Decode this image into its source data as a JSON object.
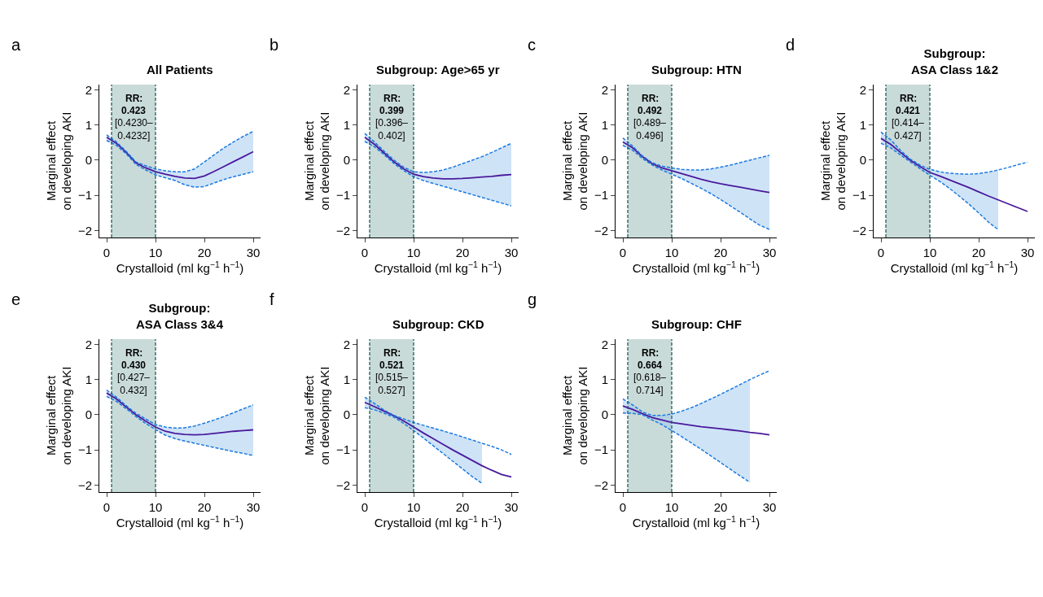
{
  "chart_data": [
    {
      "type": "line",
      "title": "All Patients",
      "xlabel": "Crystalloid (ml kg$^{−1}$ h$^{−1}$)",
      "ylabel": "Marginal effect\non developing AKI",
      "annotations": [
        "a",
        "RR:",
        "0.423",
        "[0.4230–\n0.4232]"
      ],
      "xlim": [
        -1.5,
        31.5
      ],
      "ylim": [
        -2.2,
        2.15
      ],
      "xticks": [
        0,
        10,
        20,
        30
      ],
      "yticks": [
        -2,
        -1,
        0,
        1,
        2
      ],
      "grid": false,
      "marker": "none",
      "line_style": "solid",
      "x": [
        0,
        2,
        4,
        6,
        8,
        10,
        12,
        14,
        16,
        18,
        20,
        22,
        24,
        26,
        28,
        30
      ],
      "series": [
        {
          "color": "#4a1a9c",
          "values": [
            0.65,
            0.48,
            0.22,
            -0.08,
            -0.22,
            -0.33,
            -0.4,
            -0.46,
            -0.51,
            -0.52,
            -0.45,
            -0.32,
            -0.18,
            -0.04,
            0.1,
            0.24
          ],
          "upper": [
            0.72,
            0.52,
            0.25,
            -0.05,
            -0.16,
            -0.25,
            -0.3,
            -0.33,
            -0.33,
            -0.25,
            -0.05,
            0.15,
            0.35,
            0.52,
            0.68,
            0.82
          ],
          "lower": [
            0.56,
            0.42,
            0.18,
            -0.12,
            -0.28,
            -0.42,
            -0.5,
            -0.58,
            -0.7,
            -0.77,
            -0.75,
            -0.65,
            -0.55,
            -0.47,
            -0.4,
            -0.33
          ]
        },
        {
          "color": "#1a7ae0",
          "line_style": "dashed",
          "values": [
            0.72,
            0.52,
            0.25,
            -0.05,
            -0.16,
            -0.25,
            -0.3,
            -0.33,
            -0.33,
            -0.25,
            -0.05,
            0.15,
            0.35,
            0.52,
            0.68,
            0.82
          ]
        },
        {
          "color": "#1a7ae0",
          "line_style": "dashed",
          "values": [
            0.56,
            0.42,
            0.18,
            -0.12,
            -0.28,
            -0.42,
            -0.5,
            -0.58,
            -0.7,
            -0.77,
            -0.75,
            -0.65,
            -0.55,
            -0.47,
            -0.4,
            -0.33
          ]
        }
      ],
      "bands": [
        {
          "axis": "x",
          "from": 1,
          "to": 10,
          "color": "#c9dbd9"
        }
      ],
      "ref_lines": [
        {
          "axis": "x",
          "value": 1,
          "color": "#1e5f5a",
          "line_style": "dashed"
        },
        {
          "axis": "x",
          "value": 10,
          "color": "#1e5f5a",
          "line_style": "dashed"
        }
      ]
    },
    {
      "type": "line",
      "title": "Subgroup: Age>65 yr",
      "xlabel": "Crystalloid (ml kg$^{−1}$ h$^{−1}$)",
      "ylabel": "Marginal effect\non developing AKI",
      "annotations": [
        "b",
        "RR:",
        "0.399",
        "[0.396–\n0.402]"
      ],
      "xlim": [
        -1.5,
        31.5
      ],
      "ylim": [
        -2.2,
        2.15
      ],
      "xticks": [
        0,
        10,
        20,
        30
      ],
      "yticks": [
        -2,
        -1,
        0,
        1,
        2
      ],
      "grid": false,
      "marker": "none",
      "line_style": "solid",
      "x": [
        0,
        2,
        4,
        6,
        8,
        10,
        12,
        14,
        16,
        18,
        20,
        22,
        24,
        26,
        28,
        30
      ],
      "series": [
        {
          "color": "#4a1a9c",
          "values": [
            0.65,
            0.45,
            0.2,
            -0.05,
            -0.25,
            -0.4,
            -0.47,
            -0.51,
            -0.53,
            -0.53,
            -0.52,
            -0.5,
            -0.48,
            -0.46,
            -0.43,
            -0.41
          ],
          "upper": [
            0.76,
            0.52,
            0.25,
            0,
            -0.2,
            -0.33,
            -0.35,
            -0.33,
            -0.28,
            -0.2,
            -0.1,
            0,
            0.1,
            0.22,
            0.35,
            0.48
          ],
          "lower": [
            0.53,
            0.38,
            0.15,
            -0.1,
            -0.3,
            -0.47,
            -0.58,
            -0.66,
            -0.74,
            -0.82,
            -0.9,
            -0.98,
            -1.06,
            -1.14,
            -1.22,
            -1.3
          ]
        },
        {
          "color": "#1a7ae0",
          "line_style": "dashed",
          "values": [
            0.76,
            0.52,
            0.25,
            0,
            -0.2,
            -0.33,
            -0.35,
            -0.33,
            -0.28,
            -0.2,
            -0.1,
            0,
            0.1,
            0.22,
            0.35,
            0.48
          ]
        },
        {
          "color": "#1a7ae0",
          "line_style": "dashed",
          "values": [
            0.53,
            0.38,
            0.15,
            -0.1,
            -0.3,
            -0.47,
            -0.58,
            -0.66,
            -0.74,
            -0.82,
            -0.9,
            -0.98,
            -1.06,
            -1.14,
            -1.22,
            -1.3
          ]
        }
      ],
      "bands": [
        {
          "axis": "x",
          "from": 1,
          "to": 10,
          "color": "#c9dbd9"
        }
      ],
      "ref_lines": [
        {
          "axis": "x",
          "value": 1,
          "color": "#1e5f5a",
          "line_style": "dashed"
        },
        {
          "axis": "x",
          "value": 10,
          "color": "#1e5f5a",
          "line_style": "dashed"
        }
      ]
    },
    {
      "type": "line",
      "title": "Subgroup: HTN",
      "xlabel": "Crystalloid (ml kg$^{−1}$ h$^{−1}$)",
      "ylabel": "Marginal effect\non developing AKI",
      "annotations": [
        "c",
        "RR:",
        "0.492",
        "[0.489–\n0.496]"
      ],
      "xlim": [
        -1.5,
        31.5
      ],
      "ylim": [
        -2.2,
        2.15
      ],
      "xticks": [
        0,
        10,
        20,
        30
      ],
      "yticks": [
        -2,
        -1,
        0,
        1,
        2
      ],
      "grid": false,
      "marker": "none",
      "line_style": "solid",
      "x": [
        0,
        2,
        4,
        6,
        8,
        10,
        12,
        14,
        16,
        18,
        20,
        22,
        24,
        26,
        28,
        30
      ],
      "series": [
        {
          "color": "#4a1a9c",
          "values": [
            0.52,
            0.35,
            0.1,
            -0.1,
            -0.22,
            -0.3,
            -0.38,
            -0.46,
            -0.54,
            -0.61,
            -0.67,
            -0.72,
            -0.77,
            -0.82,
            -0.87,
            -0.92
          ],
          "upper": [
            0.63,
            0.4,
            0.12,
            -0.07,
            -0.17,
            -0.22,
            -0.26,
            -0.28,
            -0.28,
            -0.25,
            -0.2,
            -0.14,
            -0.07,
            0,
            0.07,
            0.14
          ],
          "lower": [
            0.42,
            0.28,
            0.05,
            -0.14,
            -0.28,
            -0.4,
            -0.52,
            -0.66,
            -0.8,
            -0.95,
            -1.12,
            -1.3,
            -1.48,
            -1.67,
            -1.85,
            -1.97
          ]
        },
        {
          "color": "#1a7ae0",
          "line_style": "dashed",
          "values": [
            0.63,
            0.4,
            0.12,
            -0.07,
            -0.17,
            -0.22,
            -0.26,
            -0.28,
            -0.28,
            -0.25,
            -0.2,
            -0.14,
            -0.07,
            0,
            0.07,
            0.14
          ]
        },
        {
          "color": "#1a7ae0",
          "line_style": "dashed",
          "values": [
            0.42,
            0.28,
            0.05,
            -0.14,
            -0.28,
            -0.4,
            -0.52,
            -0.66,
            -0.8,
            -0.95,
            -1.12,
            -1.3,
            -1.48,
            -1.67,
            -1.85,
            -1.97
          ]
        }
      ],
      "bands": [
        {
          "axis": "x",
          "from": 1,
          "to": 10,
          "color": "#c9dbd9"
        }
      ],
      "ref_lines": [
        {
          "axis": "x",
          "value": 1,
          "color": "#1e5f5a",
          "line_style": "dashed"
        },
        {
          "axis": "x",
          "value": 10,
          "color": "#1e5f5a",
          "line_style": "dashed"
        }
      ]
    },
    {
      "type": "line",
      "title": "Subgroup:\nASA Class 1&2",
      "xlabel": "Crystalloid (ml kg$^{−1}$ h$^{−1}$)",
      "ylabel": "Marginal effect\non developing AKI",
      "annotations": [
        "d",
        "RR:",
        "0.421",
        "[0.414–\n0.427]"
      ],
      "xlim": [
        -1.5,
        31.5
      ],
      "ylim": [
        -2.2,
        2.15
      ],
      "xticks": [
        0,
        10,
        20,
        30
      ],
      "yticks": [
        -2,
        -1,
        0,
        1,
        2
      ],
      "grid": false,
      "marker": "none",
      "line_style": "solid",
      "x": [
        0,
        2,
        4,
        6,
        8,
        10,
        12,
        14,
        16,
        18,
        20,
        22,
        24,
        26,
        28,
        30
      ],
      "series": [
        {
          "color": "#4a1a9c",
          "values": [
            0.62,
            0.45,
            0.22,
            0,
            -0.18,
            -0.35,
            -0.45,
            -0.56,
            -0.67,
            -0.78,
            -0.9,
            -1.02,
            -1.13,
            -1.24,
            -1.35,
            -1.46
          ],
          "upper": [
            0.8,
            0.58,
            0.28,
            0.03,
            -0.14,
            -0.26,
            -0.33,
            -0.37,
            -0.39,
            -0.4,
            -0.38,
            -0.34,
            -0.28,
            null,
            null,
            null
          ],
          "lower": [
            0.48,
            0.35,
            0.15,
            -0.05,
            -0.24,
            -0.43,
            -0.6,
            -0.8,
            -1.02,
            -1.25,
            -1.5,
            -1.76,
            -1.98,
            null,
            null,
            null
          ]
        },
        {
          "color": "#1a7ae0",
          "line_style": "dashed",
          "values": [
            0.8,
            0.58,
            0.28,
            0.03,
            -0.14,
            -0.26,
            -0.33,
            -0.37,
            -0.39,
            -0.4,
            -0.38,
            -0.34,
            -0.28,
            -0.21,
            -0.13,
            -0.06
          ]
        },
        {
          "color": "#1a7ae0",
          "line_style": "dashed",
          "values": [
            0.48,
            0.35,
            0.15,
            -0.05,
            -0.24,
            -0.43,
            -0.6,
            -0.8,
            -1.02,
            -1.25,
            -1.5,
            -1.76,
            -1.98,
            null,
            null,
            null
          ]
        }
      ],
      "bands": [
        {
          "axis": "x",
          "from": 1,
          "to": 10,
          "color": "#c9dbd9"
        }
      ],
      "ref_lines": [
        {
          "axis": "x",
          "value": 1,
          "color": "#1e5f5a",
          "line_style": "dashed"
        },
        {
          "axis": "x",
          "value": 10,
          "color": "#1e5f5a",
          "line_style": "dashed"
        }
      ]
    },
    {
      "type": "line",
      "title": "Subgroup:\nASA Class 3&4",
      "xlabel": "Crystalloid (ml kg$^{−1}$ h$^{−1}$)",
      "ylabel": "Marginal effect\non developing AKI",
      "annotations": [
        "e",
        "RR:",
        "0.430",
        "[0.427–\n0.432]"
      ],
      "xlim": [
        -1.5,
        31.5
      ],
      "ylim": [
        -2.2,
        2.15
      ],
      "xticks": [
        0,
        10,
        20,
        30
      ],
      "yticks": [
        -2,
        -1,
        0,
        1,
        2
      ],
      "grid": false,
      "marker": "none",
      "line_style": "solid",
      "x": [
        0,
        2,
        4,
        6,
        8,
        10,
        12,
        14,
        16,
        18,
        20,
        22,
        24,
        26,
        28,
        30
      ],
      "series": [
        {
          "color": "#4a1a9c",
          "values": [
            0.62,
            0.45,
            0.22,
            0,
            -0.18,
            -0.35,
            -0.47,
            -0.53,
            -0.56,
            -0.57,
            -0.56,
            -0.53,
            -0.5,
            -0.47,
            -0.45,
            -0.43
          ],
          "upper": [
            0.7,
            0.5,
            0.26,
            0.04,
            -0.12,
            -0.28,
            -0.35,
            -0.38,
            -0.37,
            -0.32,
            -0.24,
            -0.15,
            -0.05,
            0.06,
            0.17,
            0.28
          ],
          "lower": [
            0.52,
            0.38,
            0.17,
            -0.05,
            -0.25,
            -0.42,
            -0.58,
            -0.68,
            -0.75,
            -0.81,
            -0.87,
            -0.93,
            -0.99,
            -1.05,
            -1.1,
            -1.16
          ]
        },
        {
          "color": "#1a7ae0",
          "line_style": "dashed",
          "values": [
            0.7,
            0.5,
            0.26,
            0.04,
            -0.12,
            -0.28,
            -0.35,
            -0.38,
            -0.37,
            -0.32,
            -0.24,
            -0.15,
            -0.05,
            0.06,
            0.17,
            0.28
          ]
        },
        {
          "color": "#1a7ae0",
          "line_style": "dashed",
          "values": [
            0.52,
            0.38,
            0.17,
            -0.05,
            -0.25,
            -0.42,
            -0.58,
            -0.68,
            -0.75,
            -0.81,
            -0.87,
            -0.93,
            -0.99,
            -1.05,
            -1.1,
            -1.16
          ]
        }
      ],
      "bands": [
        {
          "axis": "x",
          "from": 1,
          "to": 10,
          "color": "#c9dbd9"
        }
      ],
      "ref_lines": [
        {
          "axis": "x",
          "value": 1,
          "color": "#1e5f5a",
          "line_style": "dashed"
        },
        {
          "axis": "x",
          "value": 10,
          "color": "#1e5f5a",
          "line_style": "dashed"
        }
      ]
    },
    {
      "type": "line",
      "title": "Subgroup: CKD",
      "xlabel": "Crystalloid (ml kg$^{−1}$ h$^{−1}$)",
      "ylabel": "Marginal effect\non developing AKI",
      "annotations": [
        "f",
        "RR:",
        "0.521",
        "[0.515–\n0.527]"
      ],
      "xlim": [
        -1.5,
        31.5
      ],
      "ylim": [
        -2.2,
        2.15
      ],
      "xticks": [
        0,
        10,
        20,
        30
      ],
      "yticks": [
        -2,
        -1,
        0,
        1,
        2
      ],
      "grid": false,
      "marker": "none",
      "line_style": "solid",
      "x": [
        0,
        2,
        4,
        6,
        8,
        10,
        12,
        14,
        16,
        18,
        20,
        22,
        24,
        26,
        28,
        30
      ],
      "series": [
        {
          "color": "#4a1a9c",
          "values": [
            0.35,
            0.23,
            0.1,
            -0.03,
            -0.18,
            -0.35,
            -0.52,
            -0.68,
            -0.84,
            -1.0,
            -1.15,
            -1.3,
            -1.45,
            -1.58,
            -1.7,
            -1.77
          ],
          "upper": [
            0.5,
            0.32,
            0.13,
            -0.02,
            -0.12,
            -0.22,
            -0.3,
            -0.38,
            -0.46,
            -0.54,
            -0.63,
            -0.72,
            -0.81,
            null,
            null,
            null
          ],
          "lower": [
            0.2,
            0.14,
            0.04,
            -0.07,
            -0.25,
            -0.45,
            -0.66,
            -0.88,
            -1.1,
            -1.32,
            -1.54,
            -1.76,
            -1.95,
            null,
            null,
            null
          ]
        },
        {
          "color": "#1a7ae0",
          "line_style": "dashed",
          "values": [
            0.5,
            0.32,
            0.13,
            -0.02,
            -0.12,
            -0.22,
            -0.3,
            -0.38,
            -0.46,
            -0.54,
            -0.63,
            -0.72,
            -0.81,
            -0.9,
            -1.0,
            -1.13
          ]
        },
        {
          "color": "#1a7ae0",
          "line_style": "dashed",
          "values": [
            0.2,
            0.14,
            0.04,
            -0.07,
            -0.25,
            -0.45,
            -0.66,
            -0.88,
            -1.1,
            -1.32,
            -1.54,
            -1.76,
            -1.95,
            null,
            null,
            null
          ]
        }
      ],
      "bands": [
        {
          "axis": "x",
          "from": 1,
          "to": 10,
          "color": "#c9dbd9"
        }
      ],
      "ref_lines": [
        {
          "axis": "x",
          "value": 1,
          "color": "#1e5f5a",
          "line_style": "dashed"
        },
        {
          "axis": "x",
          "value": 10,
          "color": "#1e5f5a",
          "line_style": "dashed"
        }
      ]
    },
    {
      "type": "line",
      "title": "Subgroup: CHF",
      "xlabel": "Crystalloid (ml kg$^{−1}$ h$^{−1}$)",
      "ylabel": "Marginal effect\non developing AKI",
      "annotations": [
        "g",
        "RR:",
        "0.664",
        "[0.618–\n0.714]"
      ],
      "xlim": [
        -1.5,
        31.5
      ],
      "ylim": [
        -2.2,
        2.15
      ],
      "xticks": [
        0,
        10,
        20,
        30
      ],
      "yticks": [
        -2,
        -1,
        0,
        1,
        2
      ],
      "grid": false,
      "marker": "none",
      "line_style": "solid",
      "x": [
        0,
        2,
        4,
        6,
        8,
        10,
        12,
        14,
        16,
        18,
        20,
        22,
        24,
        26,
        28,
        30
      ],
      "series": [
        {
          "color": "#4a1a9c",
          "values": [
            0.25,
            0.15,
            0.03,
            -0.08,
            -0.15,
            -0.22,
            -0.26,
            -0.3,
            -0.34,
            -0.37,
            -0.4,
            -0.43,
            -0.46,
            -0.5,
            -0.53,
            -0.57
          ],
          "upper": [
            0.45,
            0.28,
            0.08,
            -0.02,
            -0.02,
            0.02,
            0.1,
            0.2,
            0.32,
            0.45,
            0.58,
            0.72,
            0.86,
            1.0,
            null,
            null
          ],
          "lower": [
            0.05,
            0.04,
            0.0,
            -0.15,
            -0.28,
            -0.45,
            -0.62,
            -0.8,
            -0.98,
            -1.17,
            -1.36,
            -1.55,
            -1.74,
            -1.92,
            null,
            null
          ]
        },
        {
          "color": "#1a7ae0",
          "line_style": "dashed",
          "values": [
            0.45,
            0.28,
            0.08,
            -0.02,
            -0.02,
            0.02,
            0.1,
            0.2,
            0.32,
            0.45,
            0.58,
            0.72,
            0.86,
            1.0,
            1.13,
            1.25
          ]
        },
        {
          "color": "#1a7ae0",
          "line_style": "dashed",
          "values": [
            0.05,
            0.04,
            0.0,
            -0.15,
            -0.28,
            -0.45,
            -0.62,
            -0.8,
            -0.98,
            -1.17,
            -1.36,
            -1.55,
            -1.74,
            -1.92,
            null,
            null
          ]
        }
      ],
      "bands": [
        {
          "axis": "x",
          "from": 1,
          "to": 10,
          "color": "#c9dbd9"
        }
      ],
      "ref_lines": [
        {
          "axis": "x",
          "value": 1,
          "color": "#1e5f5a",
          "line_style": "dashed"
        },
        {
          "axis": "x",
          "value": 10,
          "color": "#1e5f5a",
          "line_style": "dashed"
        }
      ]
    }
  ]
}
